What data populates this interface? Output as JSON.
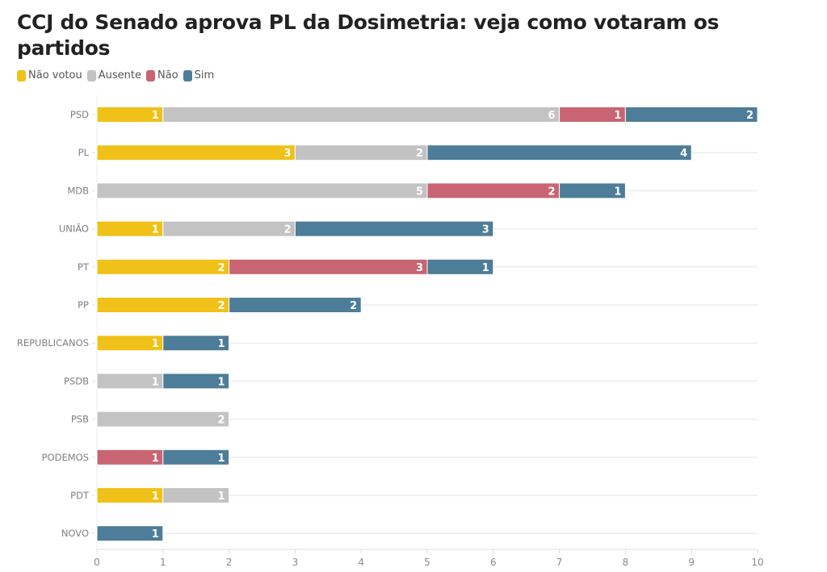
{
  "chart_data": {
    "type": "bar",
    "orientation": "horizontal",
    "stacked": true,
    "title": "CCJ do Senado aprova PL da Dosimetria: veja como votaram os partidos",
    "xlabel": "",
    "ylabel": "",
    "xlim": [
      0,
      10
    ],
    "xticks": [
      "0",
      "1",
      "2",
      "3",
      "4",
      "5",
      "6",
      "7",
      "8",
      "9",
      "10"
    ],
    "grid": true,
    "legend_position": "top-left",
    "categories": [
      "PSD",
      "PL",
      "MDB",
      "UNIÃO",
      "PT",
      "PP",
      "REPUBLICANOS",
      "PSDB",
      "PSB",
      "PODEMOS",
      "PDT",
      "NOVO"
    ],
    "series": [
      {
        "name": "Não votou",
        "color": "#f0c118",
        "values": [
          1,
          3,
          0,
          1,
          2,
          2,
          1,
          0,
          0,
          0,
          1,
          0
        ]
      },
      {
        "name": "Ausente",
        "color": "#c3c3c3",
        "values": [
          6,
          2,
          5,
          2,
          0,
          0,
          0,
          1,
          2,
          0,
          1,
          0
        ]
      },
      {
        "name": "Não",
        "color": "#c96572",
        "values": [
          1,
          0,
          2,
          0,
          3,
          0,
          0,
          0,
          0,
          1,
          0,
          0
        ]
      },
      {
        "name": "Sim",
        "color": "#4d7d98",
        "values": [
          2,
          4,
          1,
          3,
          1,
          2,
          1,
          1,
          0,
          1,
          0,
          1
        ]
      }
    ]
  }
}
